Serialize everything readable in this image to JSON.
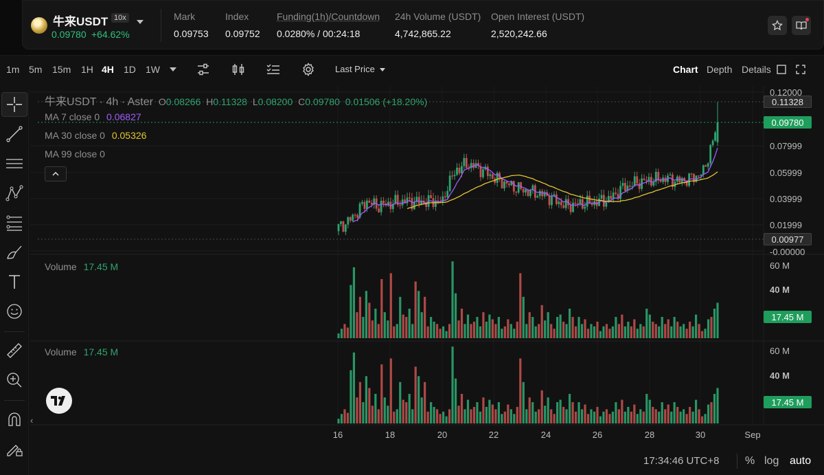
{
  "ticker": {
    "symbol": "牛来USDT",
    "leverage": "10x",
    "last_price": "0.09780",
    "change_pct": "+64.62%",
    "stats": [
      {
        "label": "Mark",
        "value": "0.09753"
      },
      {
        "label": "Index",
        "value": "0.09752"
      },
      {
        "label": "Funding(1h)/Countdown",
        "value": "0.0280% / 00:24:18"
      },
      {
        "label": "24h Volume (USDT)",
        "value": "4,742,865.22"
      },
      {
        "label": "Open Interest (USDT)",
        "value": "2,520,242.66"
      }
    ]
  },
  "toolbar": {
    "intervals": [
      "1m",
      "5m",
      "15m",
      "1H",
      "4H",
      "1D",
      "1W"
    ],
    "active_interval": "4H",
    "price_type": "Last Price",
    "views": [
      "Chart",
      "Depth",
      "Details"
    ],
    "active_view": "Chart"
  },
  "legend": {
    "title": "牛来USDT · 4h · Aster",
    "o_label": "O",
    "o": "0.08266",
    "h_label": "H",
    "h": "0.11328",
    "l_label": "L",
    "l": "0.08200",
    "c_label": "C",
    "c": "0.09780",
    "change": "0.01506 (+18.20%)",
    "ma7_label": "MA 7 close 0",
    "ma7": "0.06827",
    "ma30_label": "MA 30 close 0",
    "ma30": "0.05326",
    "ma99_label": "MA 99 close 0",
    "vol1_label": "Volume",
    "vol1": "17.45 M",
    "vol2_label": "Volume",
    "vol2": "17.45 M"
  },
  "price_tags": {
    "high": "0.11328",
    "last": "0.09780",
    "low": "0.00977",
    "vol1": "17.45 M",
    "vol2": "17.45 M"
  },
  "axis": {
    "price_ticks": [
      "0.12000",
      "0.07999",
      "0.05999",
      "0.03999",
      "0.01999",
      "-0.00000"
    ],
    "vol_ticks": [
      "60 M",
      "40 M"
    ],
    "date_labels": [
      "16",
      "18",
      "20",
      "22",
      "24",
      "26",
      "28",
      "30",
      "Sep"
    ]
  },
  "footer": {
    "time": "17:34:46 UTC+8",
    "pct": "%",
    "log": "log",
    "auto": "auto"
  },
  "colors": {
    "up": "#2ea46f",
    "down": "#c0504d",
    "ma7": "#a15cff",
    "ma30": "#e3c533",
    "last_tag": "#1f9d5c"
  },
  "chart_data": {
    "type": "candlestick",
    "interval": "4h",
    "price_range": [
      -2e-05,
      0.12
    ],
    "volume_range": [
      0,
      66000000
    ],
    "x_days": [
      16,
      30.6
    ],
    "candles": [],
    "volumes_millions": [
      4,
      8,
      12,
      9,
      45,
      60,
      22,
      35,
      18,
      40,
      30,
      15,
      25,
      12,
      50,
      22,
      15,
      55,
      10,
      12,
      35,
      20,
      18,
      25,
      12,
      48,
      40,
      22,
      35,
      10,
      18,
      14,
      12,
      8,
      10,
      6,
      12,
      65,
      38,
      15,
      25,
      12,
      20,
      12,
      14,
      18,
      10,
      22,
      14,
      20,
      16,
      12,
      18,
      8,
      10,
      16,
      12,
      8,
      14,
      55,
      35,
      12,
      22,
      18,
      10,
      12,
      28,
      15,
      22,
      12,
      8,
      18,
      20,
      14,
      12,
      25,
      18,
      10,
      18,
      12,
      16,
      8,
      12,
      10,
      14,
      6,
      10,
      12,
      8,
      10,
      18,
      12,
      20,
      10,
      14,
      10,
      16,
      8,
      12,
      10,
      25,
      20,
      14,
      12,
      10,
      18,
      12,
      16,
      10,
      18,
      14,
      10,
      12,
      8,
      14,
      10,
      20,
      12,
      6,
      8,
      16,
      18,
      25,
      30
    ]
  }
}
